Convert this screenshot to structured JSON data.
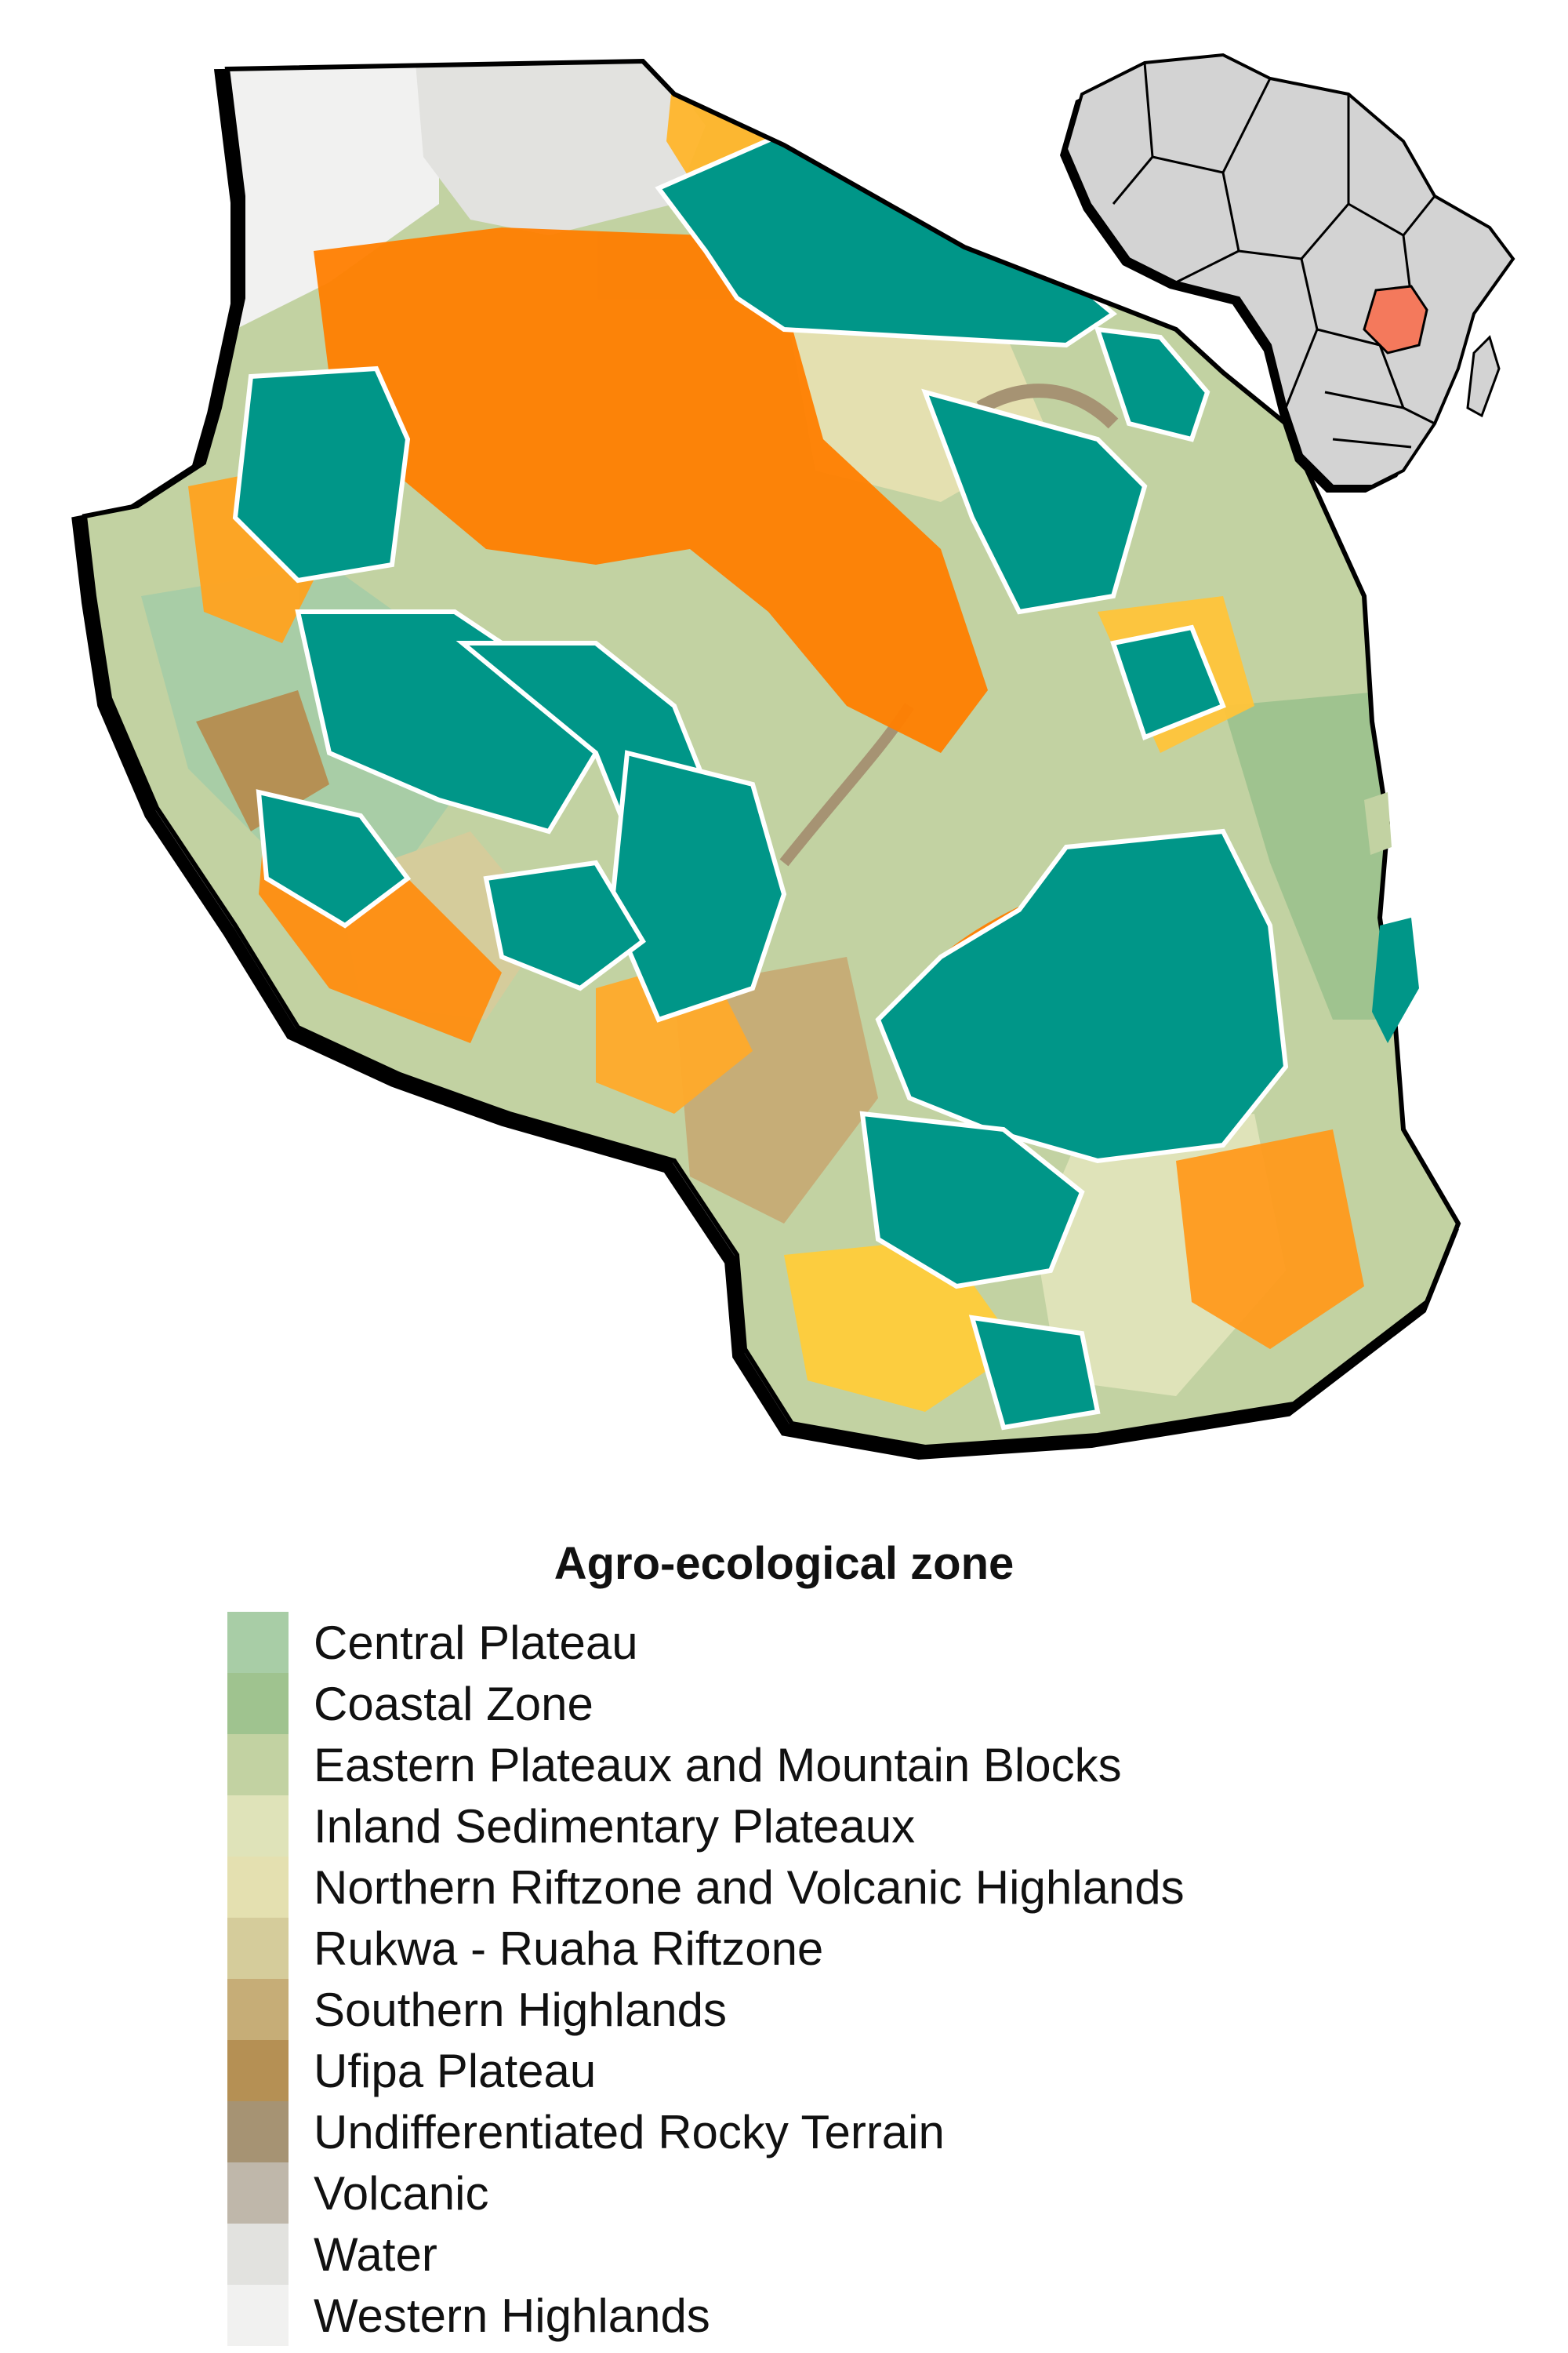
{
  "legend": {
    "title": "Agro-ecological zone",
    "items": [
      {
        "label": "Central Plateau",
        "color": "#a8cda6"
      },
      {
        "label": "Coastal Zone",
        "color": "#9fc38f"
      },
      {
        "label": "Eastern Plateaux and Mountain Blocks",
        "color": "#c2d2a2"
      },
      {
        "label": "Inland Sedimentary Plateaux",
        "color": "#dfe3b9"
      },
      {
        "label": "Northern Riftzone  and Volcanic Highlands",
        "color": "#e4e0b0"
      },
      {
        "label": "Rukwa - Ruaha Riftzone",
        "color": "#d5cc9b"
      },
      {
        "label": "Southern Highlands",
        "color": "#c6ad77"
      },
      {
        "label": "Ufipa Plateau",
        "color": "#b59054"
      },
      {
        "label": "Undifferentiated Rocky Terrain",
        "color": "#a69373"
      },
      {
        "label": "Volcanic",
        "color": "#bfb7aa"
      },
      {
        "label": "Water",
        "color": "#e2e2df"
      },
      {
        "label": "Western Highlands",
        "color": "#f1f1f0"
      }
    ]
  },
  "map": {
    "colors": {
      "protected_area": "#009688",
      "cropland_high": "#ff7e00",
      "cropland_low": "#ffd43a",
      "outline": "#000000",
      "inset_land": "#d3d3d3",
      "inset_highlight": "#f4795c"
    }
  }
}
